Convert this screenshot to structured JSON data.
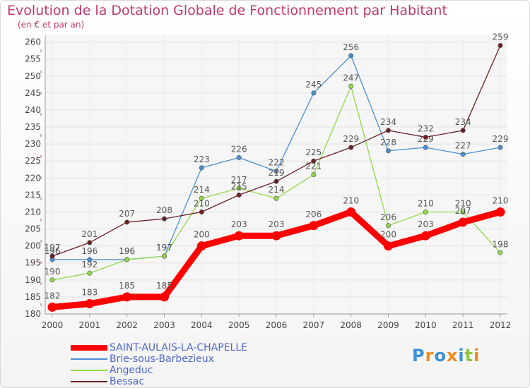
{
  "header": {
    "title": "Evolution de la Dotation Globale de Fonctionnement par Habitant",
    "subtitle": "(en € et par an)"
  },
  "brand": {
    "text": "Proxiti"
  },
  "chart_data": {
    "type": "line",
    "title": "Evolution de la Dotation Globale de Fonctionnement par Habitant",
    "subtitle": "(en € et par an)",
    "xlabel": "",
    "ylabel": "",
    "categories": [
      "2000",
      "2001",
      "2002",
      "2003",
      "2004",
      "2005",
      "2006",
      "2007",
      "2008",
      "2009",
      "2010",
      "2011",
      "2012"
    ],
    "yticks": [
      180,
      185,
      190,
      195,
      200,
      205,
      210,
      215,
      220,
      225,
      230,
      235,
      240,
      245,
      250,
      255,
      260
    ],
    "ylim": [
      180,
      262
    ],
    "grid": true,
    "legend_position": "bottom",
    "series": [
      {
        "name": "SAINT-AULAIS-LA-CHAPELLE",
        "color": "#ff0000",
        "values": [
          182,
          183,
          185,
          185,
          200,
          203,
          203,
          206,
          210,
          200,
          203,
          207,
          210
        ]
      },
      {
        "name": "Brie-sous-Barbezieux",
        "color": "#4a8fd0",
        "values": [
          196,
          196,
          196,
          197,
          223,
          226,
          222,
          245,
          256,
          228,
          229,
          227,
          229
        ]
      },
      {
        "name": "Angeduc",
        "color": "#8fd94a",
        "values": [
          190,
          192,
          196,
          197,
          214,
          217,
          214,
          221,
          247,
          206,
          210,
          210,
          198
        ]
      },
      {
        "name": "Bessac",
        "color": "#6b1f24",
        "values": [
          197,
          201,
          207,
          208,
          210,
          215,
          219,
          225,
          229,
          234,
          232,
          234,
          259
        ]
      }
    ]
  }
}
